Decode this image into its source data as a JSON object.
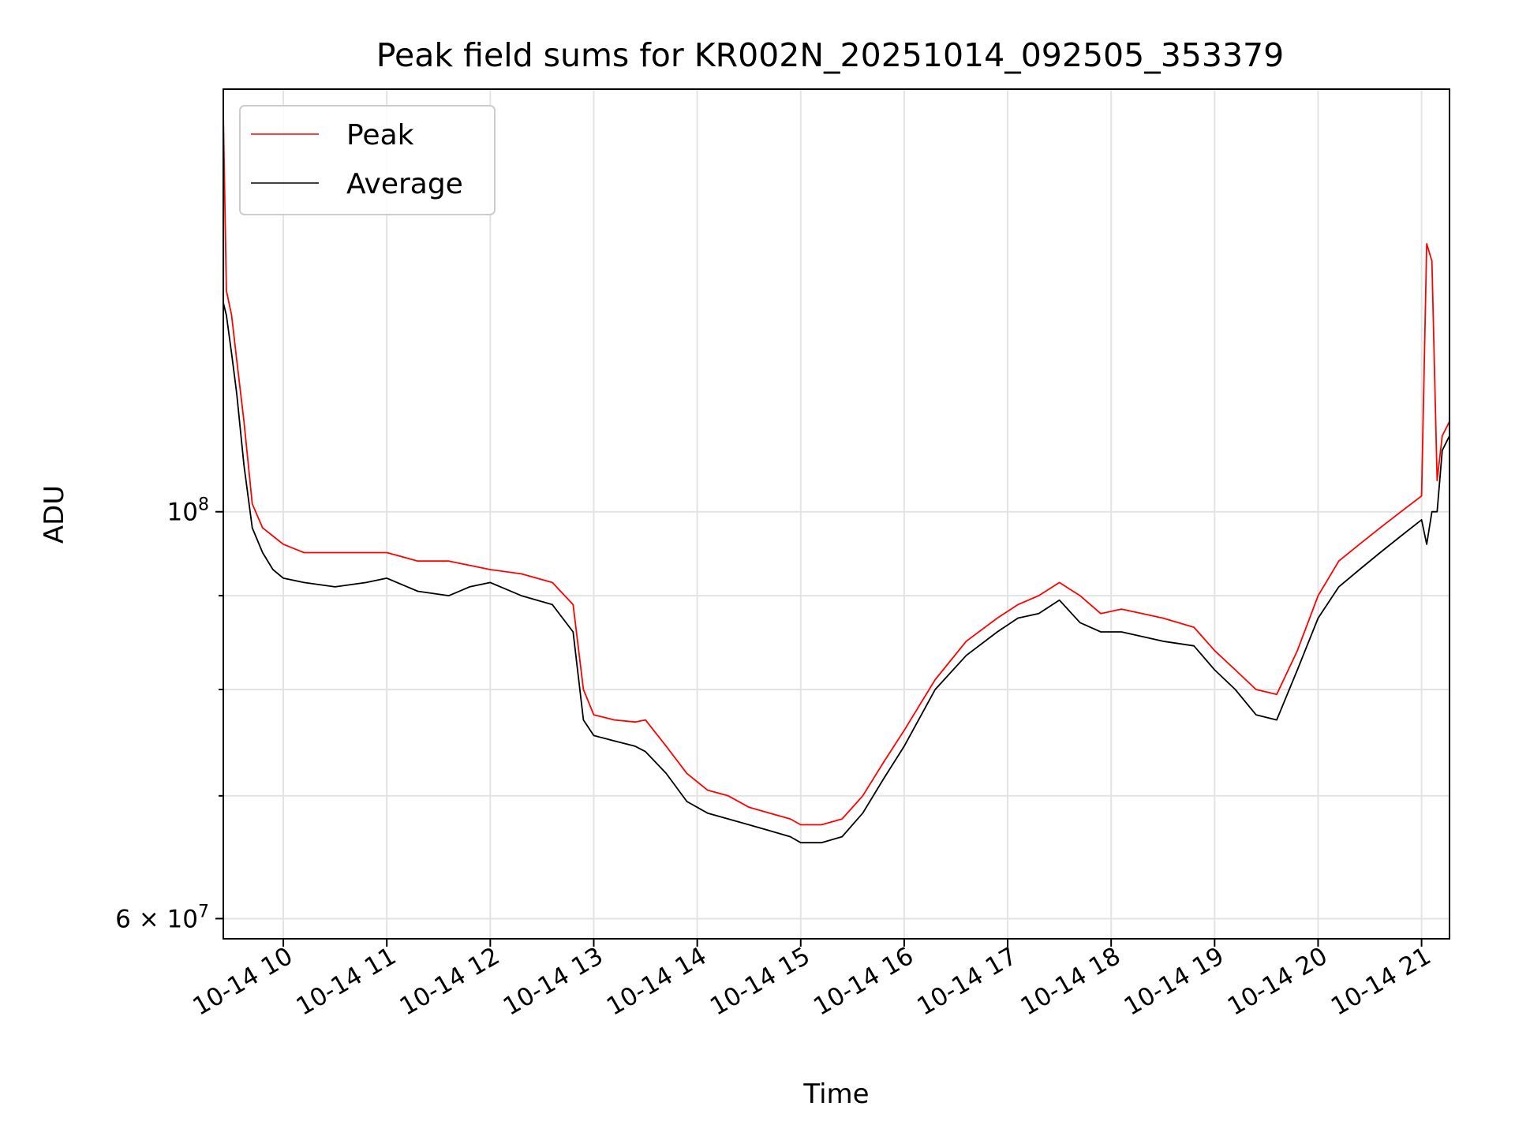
{
  "chart_data": {
    "type": "line",
    "title": "Peak field sums for KR002N_20251014_092505_353379",
    "xlabel": "Time",
    "ylabel": "ADU",
    "yscale": "log",
    "xlim_hours": [
      9.42,
      21.27
    ],
    "ylim": [
      58500000,
      170000000
    ],
    "x_ticks": [
      {
        "value": 10,
        "label": "10-14 10"
      },
      {
        "value": 11,
        "label": "10-14 11"
      },
      {
        "value": 12,
        "label": "10-14 12"
      },
      {
        "value": 13,
        "label": "10-14 13"
      },
      {
        "value": 14,
        "label": "10-14 14"
      },
      {
        "value": 15,
        "label": "10-14 15"
      },
      {
        "value": 16,
        "label": "10-14 16"
      },
      {
        "value": 17,
        "label": "10-14 17"
      },
      {
        "value": 18,
        "label": "10-14 18"
      },
      {
        "value": 19,
        "label": "10-14 19"
      },
      {
        "value": 20,
        "label": "10-14 20"
      },
      {
        "value": 21,
        "label": "10-14 21"
      }
    ],
    "y_major_ticks": [
      {
        "value": 60000000,
        "mantissa": "6",
        "times": "×",
        "base": "10",
        "exp": "7"
      },
      {
        "value": 100000000,
        "mantissa": "",
        "times": "",
        "base": "10",
        "exp": "8"
      }
    ],
    "y_minor_ticks": [
      70000000,
      80000000,
      90000000
    ],
    "grid": true,
    "legend": {
      "location": "upper left"
    },
    "series": [
      {
        "name": "Peak",
        "color": "#ff0000",
        "x": [
          9.42,
          9.45,
          9.5,
          9.55,
          9.62,
          9.7,
          9.8,
          9.9,
          10.0,
          10.2,
          10.5,
          10.8,
          11.0,
          11.3,
          11.6,
          11.8,
          12.0,
          12.3,
          12.6,
          12.8,
          12.9,
          13.0,
          13.2,
          13.4,
          13.5,
          13.7,
          13.9,
          14.1,
          14.3,
          14.5,
          14.7,
          14.9,
          15.0,
          15.2,
          15.4,
          15.6,
          15.8,
          16.0,
          16.3,
          16.6,
          16.9,
          17.1,
          17.3,
          17.5,
          17.7,
          17.9,
          18.1,
          18.3,
          18.5,
          18.8,
          19.0,
          19.2,
          19.4,
          19.6,
          19.8,
          20.0,
          20.2,
          20.4,
          20.6,
          20.8,
          21.0,
          21.05,
          21.1,
          21.15,
          21.2,
          21.27
        ],
        "values": [
          165000000,
          132000000,
          128000000,
          121000000,
          112000000,
          101000000,
          98000000,
          97000000,
          96000000,
          95000000,
          95000000,
          95000000,
          95000000,
          94000000,
          94000000,
          93500000,
          93000000,
          92500000,
          91500000,
          89000000,
          80000000,
          77500000,
          77000000,
          76800000,
          77000000,
          74500000,
          72000000,
          70500000,
          70000000,
          69000000,
          68500000,
          68000000,
          67500000,
          67500000,
          68000000,
          70000000,
          73000000,
          76000000,
          81000000,
          85000000,
          87500000,
          89000000,
          90000000,
          91500000,
          90000000,
          88000000,
          88500000,
          88000000,
          87500000,
          86500000,
          84000000,
          82000000,
          80000000,
          79500000,
          84000000,
          90000000,
          94000000,
          96000000,
          98000000,
          100000000,
          102000000,
          140000000,
          137000000,
          104000000,
          110000000,
          112000000
        ]
      },
      {
        "name": "Average",
        "color": "#000000",
        "x": [
          9.42,
          9.45,
          9.5,
          9.55,
          9.62,
          9.7,
          9.8,
          9.9,
          10.0,
          10.2,
          10.5,
          10.8,
          11.0,
          11.3,
          11.6,
          11.8,
          12.0,
          12.3,
          12.6,
          12.8,
          12.9,
          13.0,
          13.2,
          13.4,
          13.5,
          13.7,
          13.9,
          14.1,
          14.3,
          14.5,
          14.7,
          14.9,
          15.0,
          15.2,
          15.4,
          15.6,
          15.8,
          16.0,
          16.3,
          16.6,
          16.9,
          17.1,
          17.3,
          17.5,
          17.7,
          17.9,
          18.1,
          18.3,
          18.5,
          18.8,
          19.0,
          19.2,
          19.4,
          19.6,
          19.8,
          20.0,
          20.2,
          20.4,
          20.6,
          20.8,
          21.0,
          21.05,
          21.1,
          21.15,
          21.2,
          21.27
        ],
        "values": [
          130000000,
          128000000,
          122000000,
          116000000,
          106000000,
          98000000,
          95000000,
          93000000,
          92000000,
          91500000,
          91000000,
          91500000,
          92000000,
          90500000,
          90000000,
          91000000,
          91500000,
          90000000,
          89000000,
          86000000,
          77000000,
          75500000,
          75000000,
          74500000,
          74000000,
          72000000,
          69500000,
          68500000,
          68000000,
          67500000,
          67000000,
          66500000,
          66000000,
          66000000,
          66500000,
          68500000,
          71500000,
          74500000,
          80000000,
          83500000,
          86000000,
          87500000,
          88000000,
          89500000,
          87000000,
          86000000,
          86000000,
          85500000,
          85000000,
          84500000,
          82000000,
          80000000,
          77500000,
          77000000,
          82000000,
          87500000,
          91000000,
          93000000,
          95000000,
          97000000,
          99000000,
          96000000,
          100000000,
          100000000,
          108000000,
          110000000
        ]
      }
    ]
  }
}
